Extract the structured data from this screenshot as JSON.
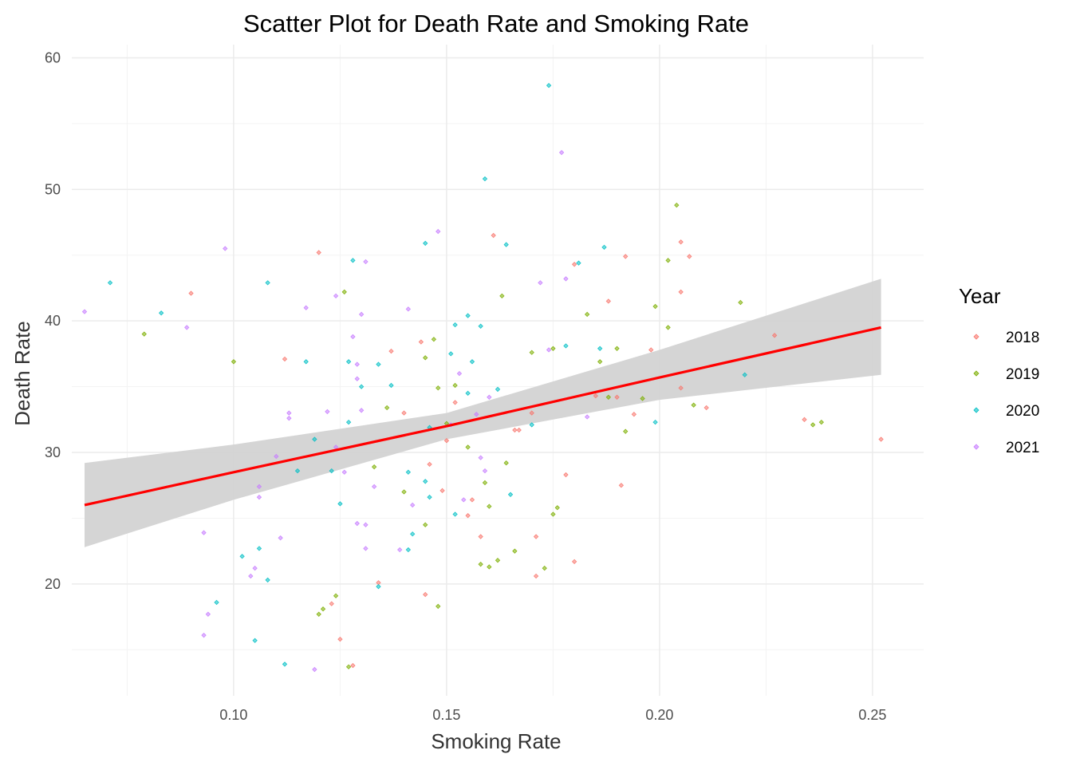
{
  "chart_data": {
    "type": "scatter",
    "title": "Scatter Plot for Death Rate and Smoking Rate",
    "xlabel": "Smoking Rate",
    "ylabel": "Death Rate",
    "xlim": [
      0.062,
      0.262
    ],
    "ylim": [
      11.5,
      61
    ],
    "x_ticks": [
      0.1,
      0.15,
      0.2,
      0.25
    ],
    "x_tick_labels": [
      "0.10",
      "0.15",
      "0.20",
      "0.25"
    ],
    "y_ticks": [
      20,
      30,
      40,
      50,
      60
    ],
    "y_tick_labels": [
      "20",
      "30",
      "40",
      "50",
      "60"
    ],
    "grid": true,
    "legend": {
      "title": "Year",
      "placement": "right"
    },
    "trend": {
      "type": "linear",
      "color": "#ff0000",
      "band_color": "#d3d3d3",
      "x": [
        0.065,
        0.1,
        0.15,
        0.2,
        0.252
      ],
      "y": [
        26.0,
        28.5,
        32.0,
        35.7,
        39.5
      ],
      "lower": [
        22.8,
        26.4,
        31.0,
        34.0,
        35.9
      ],
      "upper": [
        29.2,
        30.6,
        33.0,
        37.8,
        43.2
      ]
    },
    "series": [
      {
        "name": "2018",
        "color": "#F8766D",
        "points": [
          [
            0.12,
            45.2
          ],
          [
            0.137,
            37.7
          ],
          [
            0.152,
            33.8
          ],
          [
            0.158,
            23.6
          ],
          [
            0.161,
            46.5
          ],
          [
            0.166,
            31.7
          ],
          [
            0.171,
            20.6
          ],
          [
            0.18,
            44.3
          ],
          [
            0.18,
            21.7
          ],
          [
            0.188,
            41.5
          ],
          [
            0.191,
            27.5
          ],
          [
            0.192,
            44.9
          ],
          [
            0.198,
            37.8
          ],
          [
            0.205,
            46.0
          ],
          [
            0.205,
            42.2
          ],
          [
            0.207,
            44.9
          ],
          [
            0.205,
            34.9
          ],
          [
            0.211,
            33.4
          ],
          [
            0.227,
            38.9
          ],
          [
            0.234,
            32.5
          ],
          [
            0.252,
            31.0
          ],
          [
            0.09,
            42.1
          ],
          [
            0.112,
            37.1
          ],
          [
            0.123,
            18.5
          ],
          [
            0.125,
            15.8
          ],
          [
            0.128,
            13.8
          ],
          [
            0.134,
            20.1
          ],
          [
            0.14,
            33.0
          ],
          [
            0.144,
            38.4
          ],
          [
            0.146,
            29.1
          ],
          [
            0.149,
            27.1
          ],
          [
            0.15,
            30.9
          ],
          [
            0.155,
            25.2
          ],
          [
            0.156,
            26.4
          ],
          [
            0.167,
            31.7
          ],
          [
            0.171,
            23.6
          ],
          [
            0.178,
            28.3
          ],
          [
            0.19,
            34.2
          ],
          [
            0.194,
            32.9
          ],
          [
            0.145,
            19.2
          ],
          [
            0.185,
            34.3
          ],
          [
            0.17,
            33.0
          ]
        ]
      },
      {
        "name": "2019",
        "color": "#7CAE00",
        "points": [
          [
            0.079,
            39.0
          ],
          [
            0.1,
            36.9
          ],
          [
            0.12,
            17.7
          ],
          [
            0.121,
            18.1
          ],
          [
            0.124,
            19.1
          ],
          [
            0.126,
            42.2
          ],
          [
            0.127,
            13.7
          ],
          [
            0.133,
            28.9
          ],
          [
            0.136,
            33.4
          ],
          [
            0.14,
            27.0
          ],
          [
            0.145,
            24.5
          ],
          [
            0.145,
            37.2
          ],
          [
            0.147,
            38.6
          ],
          [
            0.148,
            18.3
          ],
          [
            0.15,
            32.2
          ],
          [
            0.152,
            35.1
          ],
          [
            0.155,
            30.4
          ],
          [
            0.158,
            21.5
          ],
          [
            0.16,
            25.9
          ],
          [
            0.16,
            21.3
          ],
          [
            0.162,
            21.8
          ],
          [
            0.163,
            41.9
          ],
          [
            0.164,
            29.2
          ],
          [
            0.166,
            22.5
          ],
          [
            0.17,
            37.6
          ],
          [
            0.173,
            21.2
          ],
          [
            0.175,
            25.3
          ],
          [
            0.176,
            25.8
          ],
          [
            0.175,
            37.9
          ],
          [
            0.183,
            40.5
          ],
          [
            0.186,
            36.9
          ],
          [
            0.188,
            34.2
          ],
          [
            0.19,
            37.9
          ],
          [
            0.192,
            31.6
          ],
          [
            0.196,
            34.1
          ],
          [
            0.199,
            41.1
          ],
          [
            0.202,
            44.6
          ],
          [
            0.204,
            48.8
          ],
          [
            0.208,
            33.6
          ],
          [
            0.219,
            41.4
          ],
          [
            0.236,
            32.1
          ],
          [
            0.238,
            32.3
          ],
          [
            0.202,
            39.5
          ],
          [
            0.159,
            27.7
          ],
          [
            0.148,
            34.9
          ]
        ]
      },
      {
        "name": "2020",
        "color": "#00BFC4",
        "points": [
          [
            0.071,
            42.9
          ],
          [
            0.083,
            40.6
          ],
          [
            0.096,
            18.6
          ],
          [
            0.102,
            22.1
          ],
          [
            0.105,
            15.7
          ],
          [
            0.106,
            22.7
          ],
          [
            0.108,
            20.3
          ],
          [
            0.108,
            42.9
          ],
          [
            0.112,
            13.9
          ],
          [
            0.115,
            28.6
          ],
          [
            0.117,
            36.9
          ],
          [
            0.119,
            31.0
          ],
          [
            0.123,
            28.6
          ],
          [
            0.125,
            26.1
          ],
          [
            0.127,
            36.9
          ],
          [
            0.127,
            32.3
          ],
          [
            0.128,
            44.6
          ],
          [
            0.13,
            35.0
          ],
          [
            0.134,
            19.8
          ],
          [
            0.134,
            36.7
          ],
          [
            0.137,
            35.1
          ],
          [
            0.141,
            28.5
          ],
          [
            0.142,
            23.8
          ],
          [
            0.141,
            22.6
          ],
          [
            0.145,
            45.9
          ],
          [
            0.145,
            27.8
          ],
          [
            0.146,
            26.6
          ],
          [
            0.151,
            37.5
          ],
          [
            0.152,
            39.7
          ],
          [
            0.152,
            25.3
          ],
          [
            0.155,
            40.4
          ],
          [
            0.155,
            34.5
          ],
          [
            0.156,
            36.9
          ],
          [
            0.158,
            39.6
          ],
          [
            0.159,
            50.8
          ],
          [
            0.162,
            34.8
          ],
          [
            0.164,
            45.8
          ],
          [
            0.165,
            26.8
          ],
          [
            0.17,
            32.1
          ],
          [
            0.174,
            57.9
          ],
          [
            0.178,
            38.1
          ],
          [
            0.181,
            44.4
          ],
          [
            0.187,
            45.6
          ],
          [
            0.186,
            37.9
          ],
          [
            0.199,
            32.3
          ],
          [
            0.22,
            35.9
          ],
          [
            0.146,
            31.9
          ]
        ]
      },
      {
        "name": "2021",
        "color": "#C77CFF",
        "points": [
          [
            0.065,
            40.7
          ],
          [
            0.089,
            39.5
          ],
          [
            0.093,
            23.9
          ],
          [
            0.093,
            16.1
          ],
          [
            0.094,
            17.7
          ],
          [
            0.098,
            45.5
          ],
          [
            0.104,
            20.6
          ],
          [
            0.105,
            21.2
          ],
          [
            0.106,
            27.4
          ],
          [
            0.106,
            26.6
          ],
          [
            0.11,
            29.7
          ],
          [
            0.111,
            23.5
          ],
          [
            0.113,
            33.0
          ],
          [
            0.113,
            32.6
          ],
          [
            0.117,
            41.0
          ],
          [
            0.119,
            13.5
          ],
          [
            0.122,
            33.1
          ],
          [
            0.124,
            41.9
          ],
          [
            0.124,
            30.4
          ],
          [
            0.128,
            38.8
          ],
          [
            0.129,
            35.6
          ],
          [
            0.129,
            24.6
          ],
          [
            0.13,
            40.5
          ],
          [
            0.131,
            44.5
          ],
          [
            0.131,
            22.7
          ],
          [
            0.131,
            24.5
          ],
          [
            0.133,
            27.4
          ],
          [
            0.139,
            22.6
          ],
          [
            0.141,
            40.9
          ],
          [
            0.142,
            26.0
          ],
          [
            0.148,
            46.8
          ],
          [
            0.151,
            32.1
          ],
          [
            0.153,
            36.0
          ],
          [
            0.154,
            26.4
          ],
          [
            0.157,
            32.9
          ],
          [
            0.158,
            29.6
          ],
          [
            0.159,
            28.6
          ],
          [
            0.16,
            34.2
          ],
          [
            0.172,
            42.9
          ],
          [
            0.174,
            37.8
          ],
          [
            0.177,
            52.8
          ],
          [
            0.178,
            43.2
          ],
          [
            0.183,
            32.7
          ],
          [
            0.13,
            33.2
          ],
          [
            0.126,
            28.5
          ],
          [
            0.129,
            36.7
          ]
        ]
      }
    ]
  }
}
